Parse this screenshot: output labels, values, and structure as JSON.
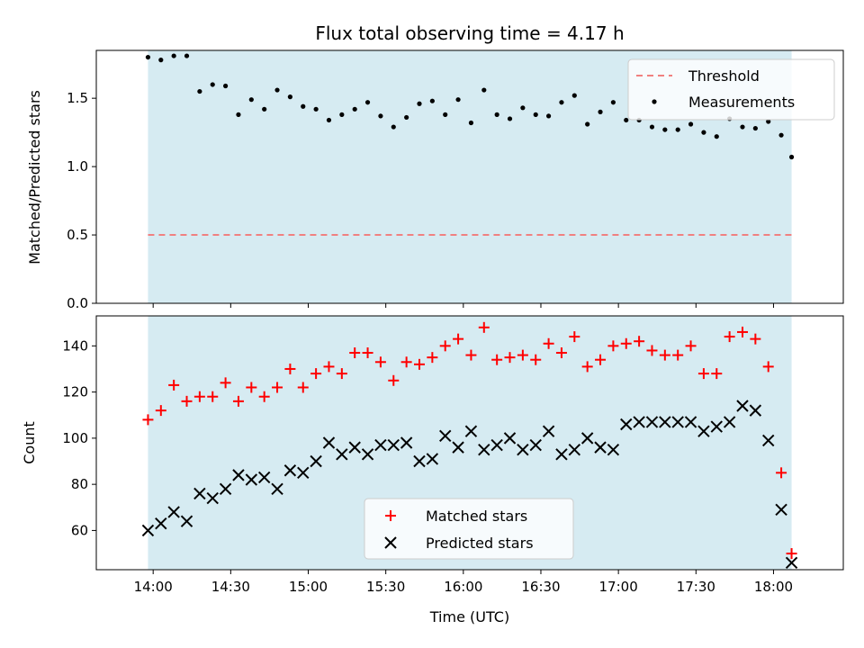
{
  "chart_data": [
    {
      "type": "scatter",
      "title": "Flux total observing time = 4.17 h",
      "ylabel": "Matched/Predicted stars",
      "xlabel": "",
      "ylim": [
        0,
        1.85
      ],
      "yticks": [
        "0.0",
        "0.5",
        "1.0",
        "1.5"
      ],
      "grid": false,
      "legend_placement": "upper right",
      "shaded_span": [
        "13:58",
        "18:07"
      ],
      "shade_color": "#add8e6",
      "threshold": {
        "name": "Threshold",
        "value": 0.5,
        "color": "#f08080",
        "style": "dashed"
      },
      "series": [
        {
          "name": "Measurements",
          "color": "#000000",
          "x": [
            "13:58",
            "14:03",
            "14:08",
            "14:13",
            "14:18",
            "14:23",
            "14:28",
            "14:33",
            "14:38",
            "14:43",
            "14:48",
            "14:53",
            "14:58",
            "15:03",
            "15:08",
            "15:13",
            "15:18",
            "15:23",
            "15:28",
            "15:33",
            "15:38",
            "15:43",
            "15:48",
            "15:53",
            "15:58",
            "16:03",
            "16:08",
            "16:13",
            "16:18",
            "16:23",
            "16:28",
            "16:33",
            "16:38",
            "16:43",
            "16:48",
            "16:53",
            "16:58",
            "17:03",
            "17:08",
            "17:13",
            "17:18",
            "17:23",
            "17:28",
            "17:33",
            "17:38",
            "17:43",
            "17:48",
            "17:53",
            "17:58",
            "18:03",
            "18:07"
          ],
          "y": [
            1.8,
            1.78,
            1.81,
            1.81,
            1.55,
            1.6,
            1.59,
            1.38,
            1.49,
            1.42,
            1.56,
            1.51,
            1.44,
            1.42,
            1.34,
            1.38,
            1.42,
            1.47,
            1.37,
            1.29,
            1.36,
            1.46,
            1.48,
            1.38,
            1.49,
            1.32,
            1.56,
            1.38,
            1.35,
            1.43,
            1.38,
            1.37,
            1.47,
            1.52,
            1.31,
            1.4,
            1.47,
            1.34,
            1.34,
            1.29,
            1.27,
            1.27,
            1.31,
            1.25,
            1.22,
            1.35,
            1.29,
            1.28,
            1.33,
            1.23,
            1.07
          ]
        }
      ]
    },
    {
      "type": "scatter",
      "title": "",
      "ylabel": "Count",
      "xlabel": "Time (UTC)",
      "ylim": [
        43,
        153
      ],
      "yticks": [
        "60",
        "80",
        "100",
        "120",
        "140"
      ],
      "xticks": [
        "14:00",
        "14:30",
        "15:00",
        "15:30",
        "16:00",
        "16:30",
        "17:00",
        "17:30",
        "18:00"
      ],
      "grid": false,
      "legend_placement": "lower center",
      "shaded_span": [
        "13:58",
        "18:07"
      ],
      "shade_color": "#add8e6",
      "series": [
        {
          "name": "Matched stars",
          "marker": "plus",
          "color": "#ff0000",
          "x": [
            "13:58",
            "14:03",
            "14:08",
            "14:13",
            "14:18",
            "14:23",
            "14:28",
            "14:33",
            "14:38",
            "14:43",
            "14:48",
            "14:53",
            "14:58",
            "15:03",
            "15:08",
            "15:13",
            "15:18",
            "15:23",
            "15:28",
            "15:33",
            "15:38",
            "15:43",
            "15:48",
            "15:53",
            "15:58",
            "16:03",
            "16:08",
            "16:13",
            "16:18",
            "16:23",
            "16:28",
            "16:33",
            "16:38",
            "16:43",
            "16:48",
            "16:53",
            "16:58",
            "17:03",
            "17:08",
            "17:13",
            "17:18",
            "17:23",
            "17:28",
            "17:33",
            "17:38",
            "17:43",
            "17:48",
            "17:53",
            "17:58",
            "18:03",
            "18:07"
          ],
          "y": [
            108,
            112,
            123,
            116,
            118,
            118,
            124,
            116,
            122,
            118,
            122,
            130,
            122,
            128,
            131,
            128,
            137,
            137,
            133,
            125,
            133,
            132,
            135,
            140,
            143,
            136,
            148,
            134,
            135,
            136,
            134,
            141,
            137,
            144,
            131,
            134,
            140,
            141,
            142,
            138,
            136,
            136,
            140,
            128,
            128,
            144,
            146,
            143,
            131,
            85,
            50
          ]
        },
        {
          "name": "Predicted stars",
          "marker": "x",
          "color": "#000000",
          "x": [
            "13:58",
            "14:03",
            "14:08",
            "14:13",
            "14:18",
            "14:23",
            "14:28",
            "14:33",
            "14:38",
            "14:43",
            "14:48",
            "14:53",
            "14:58",
            "15:03",
            "15:08",
            "15:13",
            "15:18",
            "15:23",
            "15:28",
            "15:33",
            "15:38",
            "15:43",
            "15:48",
            "15:53",
            "15:58",
            "16:03",
            "16:08",
            "16:13",
            "16:18",
            "16:23",
            "16:28",
            "16:33",
            "16:38",
            "16:43",
            "16:48",
            "16:53",
            "16:58",
            "17:03",
            "17:08",
            "17:13",
            "17:18",
            "17:23",
            "17:28",
            "17:33",
            "17:38",
            "17:43",
            "17:48",
            "17:53",
            "17:58",
            "18:03",
            "18:07"
          ],
          "y": [
            60,
            63,
            68,
            64,
            76,
            74,
            78,
            84,
            82,
            83,
            78,
            86,
            85,
            90,
            98,
            93,
            96,
            93,
            97,
            97,
            98,
            90,
            91,
            101,
            96,
            103,
            95,
            97,
            100,
            95,
            97,
            103,
            93,
            95,
            100,
            96,
            95,
            106,
            107,
            107,
            107,
            107,
            107,
            103,
            105,
            107,
            114,
            112,
            99,
            69,
            46
          ]
        }
      ]
    }
  ]
}
